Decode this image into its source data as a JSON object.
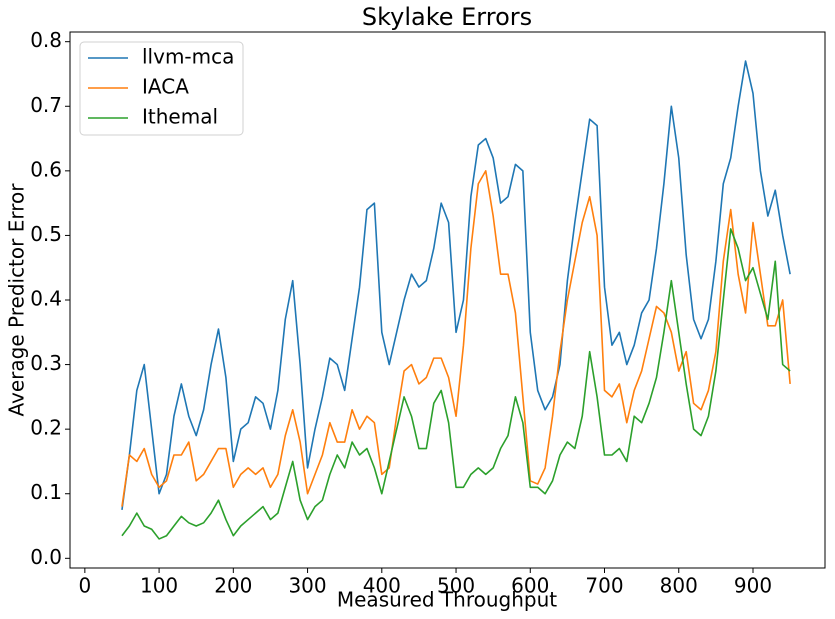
{
  "chart_data": {
    "type": "line",
    "title": "Skylake Errors",
    "x_label": "Measured Throughput",
    "y_label": "Average Predictor Error",
    "x": [
      50,
      60,
      70,
      80,
      90,
      100,
      110,
      120,
      130,
      140,
      150,
      160,
      170,
      180,
      190,
      200,
      210,
      220,
      230,
      240,
      250,
      260,
      270,
      280,
      290,
      300,
      310,
      320,
      330,
      340,
      350,
      360,
      370,
      380,
      390,
      400,
      410,
      420,
      430,
      440,
      450,
      460,
      470,
      480,
      490,
      500,
      510,
      520,
      530,
      540,
      550,
      560,
      570,
      580,
      590,
      600,
      610,
      620,
      630,
      640,
      650,
      660,
      670,
      680,
      690,
      700,
      710,
      720,
      730,
      740,
      750,
      760,
      770,
      780,
      790,
      800,
      810,
      820,
      830,
      840,
      850,
      860,
      870,
      880,
      890,
      900,
      910,
      920,
      930,
      940,
      950
    ],
    "series": [
      {
        "name": "llvm-mca",
        "color": "#1f77b4",
        "values": [
          0.075,
          0.16,
          0.26,
          0.3,
          0.2,
          0.1,
          0.13,
          0.22,
          0.27,
          0.22,
          0.19,
          0.23,
          0.3,
          0.355,
          0.28,
          0.15,
          0.2,
          0.21,
          0.25,
          0.24,
          0.2,
          0.26,
          0.37,
          0.43,
          0.3,
          0.14,
          0.2,
          0.25,
          0.31,
          0.3,
          0.26,
          0.34,
          0.42,
          0.54,
          0.55,
          0.35,
          0.3,
          0.35,
          0.4,
          0.44,
          0.42,
          0.43,
          0.48,
          0.55,
          0.52,
          0.35,
          0.4,
          0.56,
          0.64,
          0.65,
          0.62,
          0.55,
          0.56,
          0.61,
          0.6,
          0.35,
          0.26,
          0.23,
          0.25,
          0.3,
          0.43,
          0.52,
          0.6,
          0.68,
          0.67,
          0.42,
          0.33,
          0.35,
          0.3,
          0.33,
          0.38,
          0.4,
          0.48,
          0.58,
          0.7,
          0.62,
          0.47,
          0.37,
          0.34,
          0.37,
          0.46,
          0.58,
          0.62,
          0.7,
          0.77,
          0.72,
          0.6,
          0.53,
          0.57,
          0.5,
          0.44
        ]
      },
      {
        "name": "IACA",
        "color": "#ff7f0e",
        "values": [
          0.08,
          0.16,
          0.15,
          0.17,
          0.13,
          0.11,
          0.12,
          0.16,
          0.16,
          0.18,
          0.12,
          0.13,
          0.15,
          0.17,
          0.17,
          0.11,
          0.13,
          0.14,
          0.13,
          0.14,
          0.11,
          0.13,
          0.19,
          0.23,
          0.18,
          0.1,
          0.13,
          0.16,
          0.21,
          0.18,
          0.18,
          0.23,
          0.2,
          0.22,
          0.21,
          0.13,
          0.14,
          0.22,
          0.29,
          0.3,
          0.27,
          0.28,
          0.31,
          0.31,
          0.28,
          0.22,
          0.33,
          0.48,
          0.58,
          0.6,
          0.53,
          0.44,
          0.44,
          0.38,
          0.25,
          0.12,
          0.115,
          0.14,
          0.22,
          0.32,
          0.4,
          0.46,
          0.52,
          0.56,
          0.5,
          0.26,
          0.25,
          0.27,
          0.21,
          0.26,
          0.29,
          0.34,
          0.39,
          0.38,
          0.35,
          0.29,
          0.32,
          0.24,
          0.23,
          0.26,
          0.32,
          0.46,
          0.54,
          0.44,
          0.38,
          0.52,
          0.44,
          0.36,
          0.36,
          0.4,
          0.27
        ]
      },
      {
        "name": "Ithemal",
        "color": "#2ca02c",
        "values": [
          0.035,
          0.05,
          0.07,
          0.05,
          0.045,
          0.03,
          0.035,
          0.05,
          0.065,
          0.055,
          0.05,
          0.055,
          0.07,
          0.09,
          0.06,
          0.035,
          0.05,
          0.06,
          0.07,
          0.08,
          0.06,
          0.07,
          0.11,
          0.15,
          0.09,
          0.06,
          0.08,
          0.09,
          0.13,
          0.16,
          0.14,
          0.18,
          0.16,
          0.17,
          0.14,
          0.1,
          0.15,
          0.2,
          0.25,
          0.22,
          0.17,
          0.17,
          0.24,
          0.26,
          0.21,
          0.11,
          0.11,
          0.13,
          0.14,
          0.13,
          0.14,
          0.17,
          0.19,
          0.25,
          0.21,
          0.11,
          0.11,
          0.1,
          0.12,
          0.16,
          0.18,
          0.17,
          0.22,
          0.32,
          0.25,
          0.16,
          0.16,
          0.17,
          0.15,
          0.22,
          0.21,
          0.24,
          0.28,
          0.35,
          0.43,
          0.35,
          0.27,
          0.2,
          0.19,
          0.22,
          0.29,
          0.4,
          0.51,
          0.48,
          0.43,
          0.45,
          0.41,
          0.37,
          0.46,
          0.3,
          0.29
        ]
      }
    ],
    "xlim": [
      -20,
      997
    ],
    "ylim": [
      -0.015,
      0.815
    ],
    "xticks": [
      0,
      100,
      200,
      300,
      400,
      500,
      600,
      700,
      800,
      900
    ],
    "yticks": [
      {
        "value": 0,
        "label": "0.0"
      },
      0.1,
      0.2,
      0.3,
      0.4,
      0.5,
      0.6,
      0.7,
      0.8
    ],
    "legend": "upper left"
  }
}
